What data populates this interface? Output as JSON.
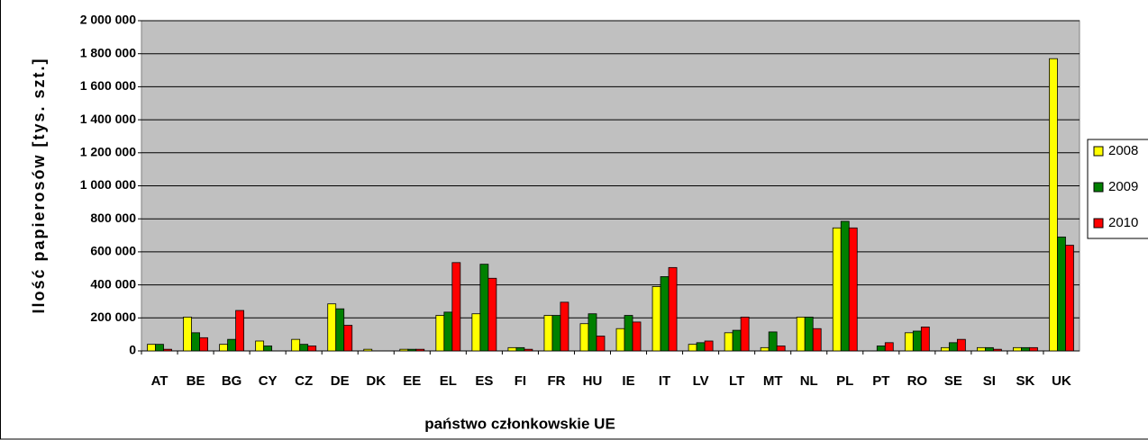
{
  "chart_data": {
    "type": "bar",
    "x_label": "państwo członkowskie UE",
    "y_label": "Ilość papierosów [tys. szt.]",
    "categories": [
      "AT",
      "BE",
      "BG",
      "CY",
      "CZ",
      "DE",
      "DK",
      "EE",
      "EL",
      "ES",
      "FI",
      "FR",
      "HU",
      "IE",
      "IT",
      "LV",
      "LT",
      "MT",
      "NL",
      "PL",
      "PT",
      "RO",
      "SE",
      "SI",
      "SK",
      "UK"
    ],
    "series": [
      {
        "name": "2008",
        "color": "#ffff00",
        "values": [
          40000,
          205000,
          40000,
          60000,
          70000,
          285000,
          10000,
          10000,
          215000,
          225000,
          20000,
          215000,
          165000,
          135000,
          390000,
          40000,
          110000,
          20000,
          205000,
          745000,
          0,
          110000,
          20000,
          20000,
          20000,
          1770000
        ]
      },
      {
        "name": "2009",
        "color": "#008000",
        "values": [
          40000,
          110000,
          70000,
          30000,
          40000,
          255000,
          0,
          10000,
          235000,
          525000,
          20000,
          215000,
          225000,
          215000,
          450000,
          50000,
          125000,
          115000,
          205000,
          785000,
          30000,
          120000,
          50000,
          20000,
          20000,
          690000
        ]
      },
      {
        "name": "2010",
        "color": "#ff0000",
        "values": [
          10000,
          80000,
          245000,
          0,
          30000,
          155000,
          0,
          10000,
          535000,
          440000,
          10000,
          295000,
          90000,
          175000,
          505000,
          60000,
          205000,
          30000,
          135000,
          745000,
          50000,
          145000,
          70000,
          10000,
          20000,
          640000
        ]
      }
    ],
    "ylim": [
      0,
      2000000
    ],
    "yticks": [
      0,
      {
        "value": 200000,
        "label": "200 000"
      },
      {
        "value": 400000,
        "label": "400 000"
      },
      {
        "value": 600000,
        "label": "600 000"
      },
      {
        "value": 800000,
        "label": "800 000"
      },
      {
        "value": 1000000,
        "label": "1 000 000"
      },
      {
        "value": 1200000,
        "label": "1 200 000"
      },
      {
        "value": 1400000,
        "label": "1 400 000"
      },
      {
        "value": 1600000,
        "label": "1 600 000"
      },
      {
        "value": 1800000,
        "label": "1 800 000"
      },
      {
        "value": 2000000,
        "label": "2 000 000"
      }
    ],
    "grid": true,
    "legend": "right"
  }
}
